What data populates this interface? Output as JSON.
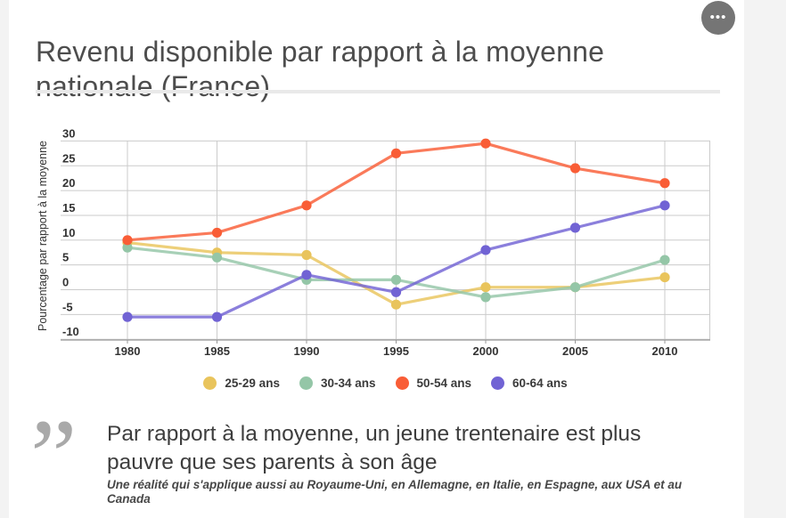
{
  "header": {
    "title": "Revenu disponible par rapport à la moyenne nationale (France)",
    "menu_icon": "•••"
  },
  "chart_data": {
    "type": "line",
    "title": "Revenu disponible par rapport à la moyenne nationale (France)",
    "xlabel": "",
    "ylabel": "Pourcentage par rapport à la moyenne",
    "x": [
      1980,
      1985,
      1990,
      1995,
      2000,
      2005,
      2010
    ],
    "ylim": [
      -10,
      30
    ],
    "ytick_step": 5,
    "grid": true,
    "legend_position": "bottom",
    "series": [
      {
        "name": "25-29 ans",
        "color": "#e9c45c",
        "values": [
          9.5,
          7.5,
          7,
          -3,
          0.5,
          0.5,
          2.5
        ]
      },
      {
        "name": "30-34 ans",
        "color": "#94c6a7",
        "values": [
          8.5,
          6.5,
          2,
          2,
          -1.5,
          0.5,
          6
        ]
      },
      {
        "name": "50-54 ans",
        "color": "#f95d36",
        "values": [
          10,
          11.5,
          17,
          27.5,
          29.5,
          24.5,
          21.5
        ]
      },
      {
        "name": "60-64 ans",
        "color": "#7163d4",
        "values": [
          -5.5,
          -5.5,
          3,
          -0.5,
          8,
          12.5,
          17
        ]
      }
    ]
  },
  "quote": {
    "mark": "”",
    "text": "Par rapport à la moyenne, un jeune trentenaire est plus pauvre que ses parents à son âge",
    "attribution": "Une réalité qui s'applique aussi au Royaume-Uni, en Allemagne, en Italie, en Espagne, aux USA et au Canada"
  }
}
